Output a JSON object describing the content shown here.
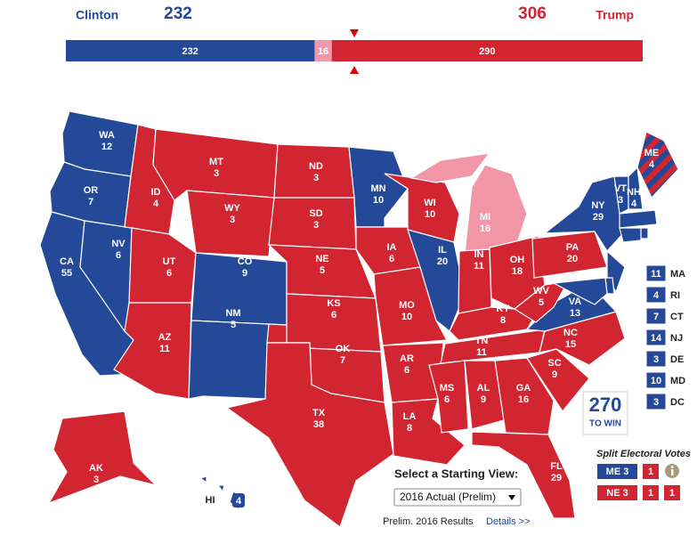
{
  "header": {
    "candidates": [
      {
        "name": "Clinton",
        "total": 232,
        "party": "D"
      },
      {
        "name": "Trump",
        "total": 306,
        "party": "R"
      }
    ]
  },
  "bar": {
    "segments": [
      {
        "value": 232,
        "party": "D"
      },
      {
        "value": 16,
        "party": "T"
      },
      {
        "value": 290,
        "party": "R"
      }
    ]
  },
  "colors": {
    "D": "#244999",
    "R": "#d22532",
    "T": "#f297a8"
  },
  "states": [
    {
      "abbr": "WA",
      "votes": 12,
      "party": "D"
    },
    {
      "abbr": "OR",
      "votes": 7,
      "party": "D"
    },
    {
      "abbr": "CA",
      "votes": 55,
      "party": "D"
    },
    {
      "abbr": "NV",
      "votes": 6,
      "party": "D"
    },
    {
      "abbr": "ID",
      "votes": 4,
      "party": "R"
    },
    {
      "abbr": "MT",
      "votes": 3,
      "party": "R"
    },
    {
      "abbr": "WY",
      "votes": 3,
      "party": "R"
    },
    {
      "abbr": "UT",
      "votes": 6,
      "party": "R"
    },
    {
      "abbr": "AZ",
      "votes": 11,
      "party": "R"
    },
    {
      "abbr": "CO",
      "votes": 9,
      "party": "D"
    },
    {
      "abbr": "NM",
      "votes": 5,
      "party": "D"
    },
    {
      "abbr": "ND",
      "votes": 3,
      "party": "R"
    },
    {
      "abbr": "SD",
      "votes": 3,
      "party": "R"
    },
    {
      "abbr": "NE",
      "votes": 5,
      "party": "R"
    },
    {
      "abbr": "KS",
      "votes": 6,
      "party": "R"
    },
    {
      "abbr": "OK",
      "votes": 7,
      "party": "R"
    },
    {
      "abbr": "TX",
      "votes": 38,
      "party": "R"
    },
    {
      "abbr": "MN",
      "votes": 10,
      "party": "D"
    },
    {
      "abbr": "IA",
      "votes": 6,
      "party": "R"
    },
    {
      "abbr": "MO",
      "votes": 10,
      "party": "R"
    },
    {
      "abbr": "AR",
      "votes": 6,
      "party": "R"
    },
    {
      "abbr": "LA",
      "votes": 8,
      "party": "R"
    },
    {
      "abbr": "WI",
      "votes": 10,
      "party": "R"
    },
    {
      "abbr": "IL",
      "votes": 20,
      "party": "D"
    },
    {
      "abbr": "MI",
      "votes": 16,
      "party": "T"
    },
    {
      "abbr": "IN",
      "votes": 11,
      "party": "R"
    },
    {
      "abbr": "OH",
      "votes": 18,
      "party": "R"
    },
    {
      "abbr": "KY",
      "votes": 8,
      "party": "R"
    },
    {
      "abbr": "TN",
      "votes": 11,
      "party": "R"
    },
    {
      "abbr": "MS",
      "votes": 6,
      "party": "R"
    },
    {
      "abbr": "AL",
      "votes": 9,
      "party": "R"
    },
    {
      "abbr": "GA",
      "votes": 16,
      "party": "R"
    },
    {
      "abbr": "FL",
      "votes": 29,
      "party": "R"
    },
    {
      "abbr": "SC",
      "votes": 9,
      "party": "R"
    },
    {
      "abbr": "NC",
      "votes": 15,
      "party": "R"
    },
    {
      "abbr": "VA",
      "votes": 13,
      "party": "D"
    },
    {
      "abbr": "WV",
      "votes": 5,
      "party": "R"
    },
    {
      "abbr": "PA",
      "votes": 20,
      "party": "R"
    },
    {
      "abbr": "NY",
      "votes": 29,
      "party": "D"
    },
    {
      "abbr": "VT",
      "votes": 3,
      "party": "D"
    },
    {
      "abbr": "NH",
      "votes": 4,
      "party": "D"
    },
    {
      "abbr": "ME",
      "votes": 4,
      "party": "split"
    },
    {
      "abbr": "AK",
      "votes": 3,
      "party": "R"
    },
    {
      "abbr": "HI",
      "votes": 4,
      "party": "D"
    },
    {
      "abbr": "MA",
      "votes": 11,
      "party": "D",
      "callout": true
    },
    {
      "abbr": "RI",
      "votes": 4,
      "party": "D",
      "callout": true
    },
    {
      "abbr": "CT",
      "votes": 7,
      "party": "D",
      "callout": true
    },
    {
      "abbr": "NJ",
      "votes": 14,
      "party": "D",
      "callout": true
    },
    {
      "abbr": "DE",
      "votes": 3,
      "party": "D",
      "callout": true
    },
    {
      "abbr": "MD",
      "votes": 10,
      "party": "D",
      "callout": true
    },
    {
      "abbr": "DC",
      "votes": 3,
      "party": "D",
      "callout": true
    }
  ],
  "split_votes": {
    "title": "Split Electoral Votes",
    "rows": [
      {
        "state": "ME",
        "votes": [
          {
            "value": 3,
            "party": "D"
          },
          {
            "value": 1,
            "party": "R"
          }
        ]
      },
      {
        "state": "NE",
        "votes": [
          {
            "value": 3,
            "party": "R"
          },
          {
            "value": 1,
            "party": "R"
          },
          {
            "value": 1,
            "party": "R"
          }
        ]
      }
    ]
  },
  "logo": {
    "number": "270",
    "text": "TO WIN"
  },
  "controls": {
    "prompt": "Select a Starting View:",
    "selected": "2016 Actual (Prelim)",
    "footer": "Prelim. 2016 Results",
    "link": "Details >>"
  }
}
